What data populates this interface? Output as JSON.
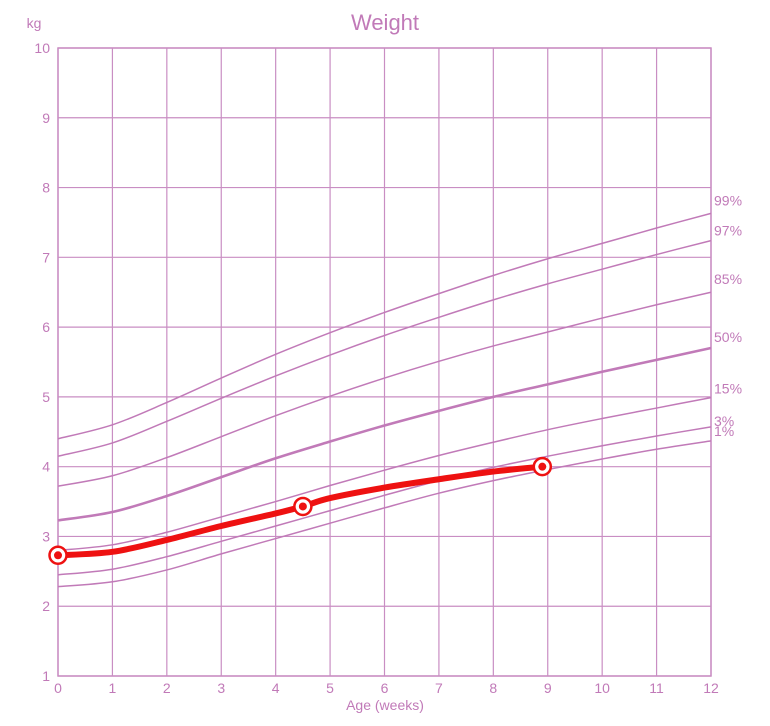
{
  "chart_data": {
    "type": "line",
    "title": "Weight",
    "xlabel": "Age (weeks)",
    "ylabel": "kg",
    "xlim": [
      0,
      12
    ],
    "ylim": [
      1,
      10
    ],
    "x_ticks": [
      0,
      1,
      2,
      3,
      4,
      5,
      6,
      7,
      8,
      9,
      10,
      11,
      12
    ],
    "y_ticks": [
      1,
      2,
      3,
      4,
      5,
      6,
      7,
      8,
      9,
      10
    ],
    "grid": true,
    "colors": {
      "grid": "#c98ec3",
      "centile": "#c17ab8",
      "measured": "#ee1111",
      "text": "#c17ab8"
    },
    "centiles": [
      {
        "name": "99%",
        "x": [
          0,
          1,
          2,
          3,
          4,
          5,
          6,
          7,
          8,
          9,
          10,
          11,
          12
        ],
        "y": [
          4.4,
          4.6,
          4.92,
          5.27,
          5.61,
          5.92,
          6.21,
          6.48,
          6.74,
          6.98,
          7.2,
          7.42,
          7.63
        ]
      },
      {
        "name": "97%",
        "x": [
          0,
          1,
          2,
          3,
          4,
          5,
          6,
          7,
          8,
          9,
          10,
          11,
          12
        ],
        "y": [
          4.15,
          4.34,
          4.65,
          4.98,
          5.3,
          5.6,
          5.88,
          6.14,
          6.39,
          6.62,
          6.83,
          7.04,
          7.24
        ]
      },
      {
        "name": "85%",
        "x": [
          0,
          1,
          2,
          3,
          4,
          5,
          6,
          7,
          8,
          9,
          10,
          11,
          12
        ],
        "y": [
          3.72,
          3.87,
          4.13,
          4.43,
          4.73,
          5.01,
          5.27,
          5.51,
          5.73,
          5.93,
          6.13,
          6.32,
          6.5
        ]
      },
      {
        "name": "50%",
        "x": [
          0,
          1,
          2,
          3,
          4,
          5,
          6,
          7,
          8,
          9,
          10,
          11,
          12
        ],
        "y": [
          3.23,
          3.35,
          3.58,
          3.85,
          4.12,
          4.36,
          4.59,
          4.8,
          5.0,
          5.18,
          5.36,
          5.53,
          5.7
        ]
      },
      {
        "name": "15%",
        "x": [
          0,
          1,
          2,
          3,
          4,
          5,
          6,
          7,
          8,
          9,
          10,
          11,
          12
        ],
        "y": [
          2.8,
          2.88,
          3.06,
          3.28,
          3.5,
          3.73,
          3.95,
          4.16,
          4.35,
          4.53,
          4.69,
          4.84,
          4.99
        ]
      },
      {
        "name": "3%",
        "x": [
          0,
          1,
          2,
          3,
          4,
          5,
          6,
          7,
          8,
          9,
          10,
          11,
          12
        ],
        "y": [
          2.45,
          2.53,
          2.71,
          2.93,
          3.15,
          3.37,
          3.59,
          3.8,
          3.99,
          4.15,
          4.3,
          4.44,
          4.57
        ]
      },
      {
        "name": "1%",
        "x": [
          0,
          1,
          2,
          3,
          4,
          5,
          6,
          7,
          8,
          9,
          10,
          11,
          12
        ],
        "y": [
          2.28,
          2.35,
          2.52,
          2.75,
          2.97,
          3.19,
          3.41,
          3.62,
          3.8,
          3.96,
          4.11,
          4.25,
          4.37
        ]
      }
    ],
    "measured": {
      "line_x": [
        0,
        1,
        2,
        3,
        4,
        4.5,
        5,
        6,
        7,
        8,
        8.9
      ],
      "line_y": [
        2.73,
        2.78,
        2.95,
        3.15,
        3.33,
        3.43,
        3.55,
        3.7,
        3.82,
        3.93,
        4.0
      ],
      "points_x": [
        0,
        4.5,
        8.9
      ],
      "points_y": [
        2.73,
        3.43,
        4.0
      ]
    }
  }
}
